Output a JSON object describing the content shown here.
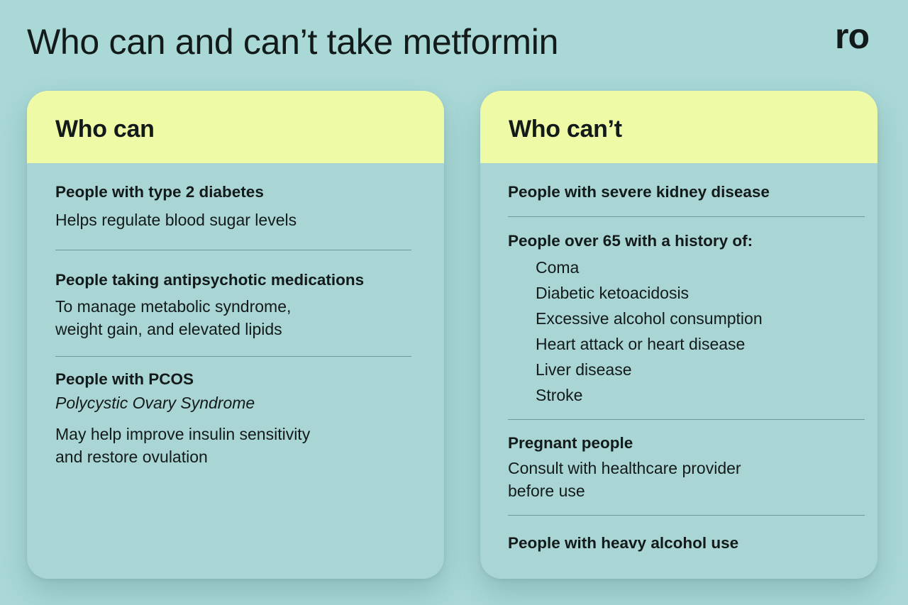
{
  "page": {
    "title": "Who can and can’t take metformin",
    "logo": "ro"
  },
  "who_can": {
    "header": "Who can",
    "items": [
      {
        "title": "People with type 2 diabetes",
        "desc_lines": [
          "Helps regulate blood sugar levels"
        ]
      },
      {
        "title": "People taking antipsychotic medications",
        "desc_lines": [
          "To manage metabolic syndrome,",
          "weight gain, and elevated lipids"
        ]
      },
      {
        "title": "People with PCOS",
        "subtitle": "Polycystic Ovary Syndrome",
        "desc_lines": [
          "May help improve insulin sensitivity",
          "and restore ovulation"
        ]
      }
    ]
  },
  "who_cant": {
    "header": "Who can’t",
    "items": [
      {
        "title": "People with severe kidney disease"
      },
      {
        "title": "People over 65 with a history of:",
        "list": [
          "Coma",
          "Diabetic ketoacidosis",
          "Excessive alcohol consumption",
          "Heart attack or heart disease",
          "Liver disease",
          "Stroke"
        ]
      },
      {
        "title": "Pregnant people",
        "desc_lines": [
          "Consult with healthcare provider",
          "before use"
        ]
      },
      {
        "title": "People with heavy alcohol use"
      }
    ]
  }
}
